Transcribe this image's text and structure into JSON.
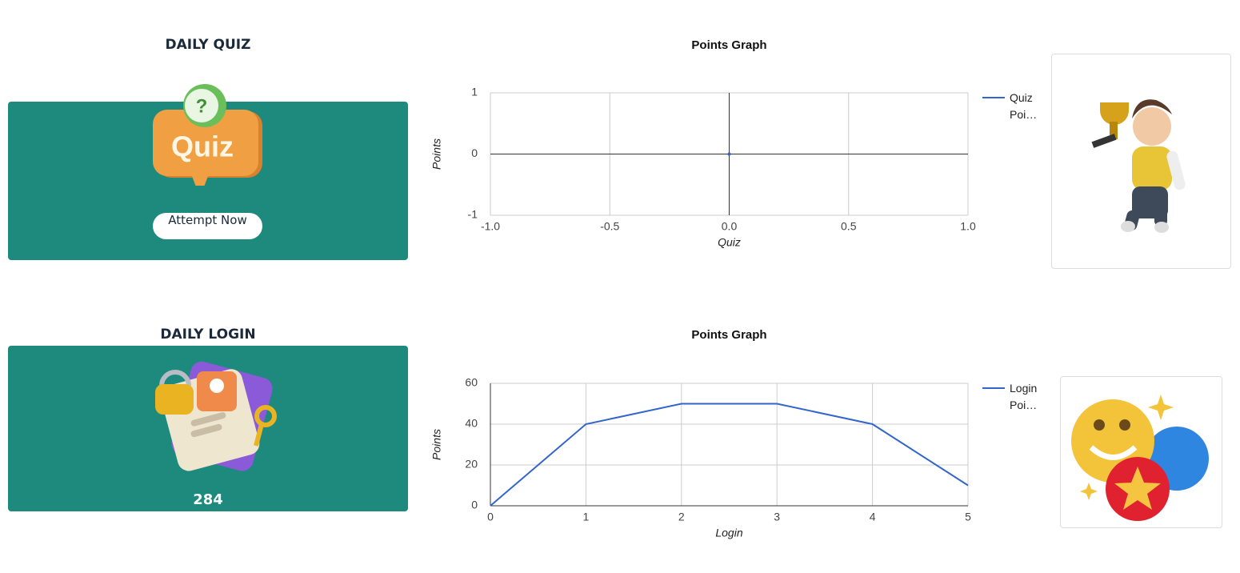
{
  "quiz_card": {
    "title": "DAILY QUIZ",
    "icon_badge": "?",
    "icon_text": "Quiz",
    "button": "Attempt Now"
  },
  "login_card": {
    "title": "DAILY LOGIN",
    "count": "284"
  },
  "chart_data": [
    {
      "type": "line",
      "title": "Points Graph",
      "x_label": "Quiz",
      "y_label": "Points",
      "x": [
        0
      ],
      "series": [
        {
          "name": "Quiz Poi…",
          "color": "#3366cc",
          "values": [
            0
          ]
        }
      ],
      "xlim": [
        -1,
        1
      ],
      "xticks": [
        {
          "value": -1,
          "label": "-1.0"
        },
        {
          "value": -0.5,
          "label": "-0.5"
        },
        {
          "value": 0,
          "label": "0.0"
        },
        0.5,
        {
          "value": 1,
          "label": "1.0"
        }
      ],
      "ylim": [
        -1,
        1
      ],
      "yticks": [
        -1,
        0,
        1
      ],
      "grid": true,
      "legend": "right"
    },
    {
      "type": "line",
      "title": "Points Graph",
      "x_label": "Login",
      "y_label": "Points",
      "x": [
        0,
        1,
        2,
        3,
        4,
        5
      ],
      "series": [
        {
          "name": "Login Poi…",
          "color": "#3366cc",
          "values": [
            0,
            40,
            50,
            50,
            40,
            10
          ]
        }
      ],
      "xlim": [
        0,
        5
      ],
      "xticks": [
        0,
        1,
        2,
        3,
        4,
        5
      ],
      "ylim": [
        0,
        60
      ],
      "yticks": [
        0,
        20,
        40,
        60
      ],
      "grid": true,
      "legend": "right"
    }
  ]
}
